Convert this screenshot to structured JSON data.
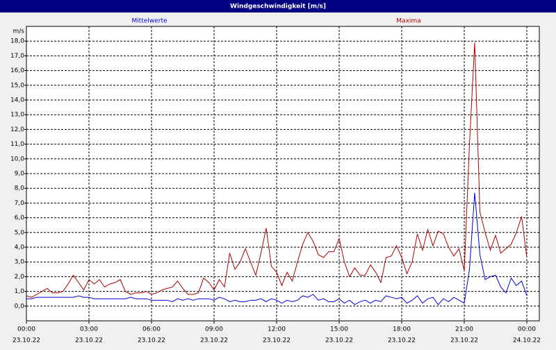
{
  "chart_data": {
    "type": "line",
    "title": "Windgeschwindigkeit [m/s]",
    "ylabel": "m/s",
    "x": [
      0,
      0.25,
      0.5,
      0.75,
      1,
      1.25,
      1.5,
      1.75,
      2,
      2.25,
      2.5,
      2.75,
      3,
      3.25,
      3.5,
      3.75,
      4,
      4.25,
      4.5,
      4.75,
      5,
      5.25,
      5.5,
      5.75,
      6,
      6.25,
      6.5,
      6.75,
      7,
      7.25,
      7.5,
      7.75,
      8,
      8.25,
      8.5,
      8.75,
      9,
      9.25,
      9.5,
      9.75,
      10,
      10.25,
      10.5,
      10.75,
      11,
      11.25,
      11.5,
      11.75,
      12,
      12.25,
      12.5,
      12.75,
      13,
      13.25,
      13.5,
      13.75,
      14,
      14.25,
      14.5,
      14.75,
      15,
      15.25,
      15.5,
      15.75,
      16,
      16.25,
      16.5,
      16.75,
      17,
      17.25,
      17.5,
      17.75,
      18,
      18.25,
      18.5,
      18.75,
      19,
      19.25,
      19.5,
      19.75,
      20,
      20.25,
      20.5,
      20.75,
      21,
      21.25,
      21.5,
      21.75,
      22,
      22.25,
      22.5,
      22.75,
      23,
      23.25,
      23.5,
      23.75,
      24
    ],
    "series": [
      {
        "name": "Mittelwerte",
        "color": "#0000dd",
        "values": [
          0.5,
          0.5,
          0.6,
          0.6,
          0.6,
          0.6,
          0.6,
          0.6,
          0.6,
          0.6,
          0.7,
          0.6,
          0.6,
          0.5,
          0.5,
          0.5,
          0.5,
          0.5,
          0.5,
          0.5,
          0.6,
          0.5,
          0.5,
          0.5,
          0.4,
          0.4,
          0.4,
          0.4,
          0.3,
          0.5,
          0.4,
          0.5,
          0.4,
          0.5,
          0.5,
          0.5,
          0.4,
          0.6,
          0.5,
          0.3,
          0.4,
          0.3,
          0.3,
          0.4,
          0.4,
          0.5,
          0.3,
          0.5,
          0.4,
          0.2,
          0.4,
          0.3,
          0.4,
          0.7,
          0.6,
          0.8,
          0.4,
          0.5,
          0.3,
          0.3,
          0.5,
          0.2,
          0.4,
          0.1,
          0.3,
          0.4,
          0.2,
          0.4,
          0.3,
          0.7,
          0.6,
          0.5,
          0.6,
          0.2,
          0.4,
          0.7,
          0.2,
          0.5,
          0.6,
          0.1,
          0.5,
          0.3,
          0.6,
          0.4,
          0.2,
          2.5,
          7.7,
          3.5,
          1.8,
          2.0,
          2.1,
          1.3,
          0.9,
          1.9,
          1.4,
          1.7,
          0.7
        ]
      },
      {
        "name": "Maxima",
        "color": "#aa0000",
        "values": [
          0.7,
          0.6,
          0.8,
          1.0,
          1.2,
          0.9,
          0.9,
          1.0,
          1.5,
          2.1,
          1.6,
          1.1,
          1.8,
          1.5,
          1.8,
          1.3,
          1.5,
          1.6,
          1.8,
          1.0,
          0.8,
          0.9,
          0.9,
          1.0,
          0.8,
          0.9,
          1.1,
          1.2,
          1.3,
          1.7,
          1.2,
          0.8,
          0.8,
          0.9,
          1.9,
          1.6,
          1.1,
          1.8,
          1.3,
          3.6,
          2.5,
          3.0,
          3.9,
          3.0,
          2.1,
          3.6,
          5.3,
          2.7,
          2.3,
          1.4,
          2.3,
          1.7,
          3.0,
          4.2,
          5.0,
          4.4,
          3.5,
          3.3,
          3.7,
          3.7,
          4.6,
          3.0,
          2.0,
          2.6,
          2.1,
          2.1,
          2.8,
          2.3,
          1.6,
          3.3,
          3.4,
          4.1,
          3.3,
          2.2,
          3.0,
          4.9,
          3.8,
          5.2,
          4.1,
          5.1,
          4.9,
          4.0,
          3.4,
          3.9,
          2.4,
          11.0,
          17.9,
          6.4,
          5.0,
          3.8,
          4.8,
          3.6,
          3.9,
          4.2,
          5.0,
          6.1,
          3.3
        ]
      }
    ],
    "xlim": [
      0,
      24.6
    ],
    "xticks": [
      {
        "value": 0,
        "label": "00:00"
      },
      {
        "value": 3,
        "label": "03:00"
      },
      {
        "value": 6,
        "label": "06:00"
      },
      {
        "value": 9,
        "label": "09:00"
      },
      {
        "value": 12,
        "label": "12:00"
      },
      {
        "value": 15,
        "label": "15:00"
      },
      {
        "value": 18,
        "label": "18:00"
      },
      {
        "value": 21,
        "label": "21:00"
      },
      {
        "value": 24,
        "label": "00:00"
      }
    ],
    "xtick_dates": [
      "23.10.22",
      "23.10.22",
      "23.10.22",
      "23.10.22",
      "23.10.22",
      "23.10.22",
      "23.10.22",
      "23.10.22",
      "24.10.22"
    ],
    "ylim": [
      -1,
      19
    ],
    "yticks": [
      {
        "value": 0,
        "label": "0,0"
      },
      {
        "value": 1,
        "label": "1,0"
      },
      {
        "value": 2,
        "label": "2,0"
      },
      {
        "value": 3,
        "label": "3,0"
      },
      {
        "value": 4,
        "label": "4,0"
      },
      {
        "value": 5,
        "label": "5,0"
      },
      {
        "value": 6,
        "label": "6,0"
      },
      {
        "value": 7,
        "label": "7,0"
      },
      {
        "value": 8,
        "label": "8,0"
      },
      {
        "value": 9,
        "label": "9,0"
      },
      {
        "value": 10,
        "label": "10,0"
      },
      {
        "value": 11,
        "label": "11,0"
      },
      {
        "value": 12,
        "label": "12,0"
      },
      {
        "value": 13,
        "label": "13,0"
      },
      {
        "value": 14,
        "label": "14,0"
      },
      {
        "value": 15,
        "label": "15,0"
      },
      {
        "value": 16,
        "label": "16,0"
      },
      {
        "value": 17,
        "label": "17,0"
      },
      {
        "value": 18,
        "label": "18,0"
      }
    ],
    "grid": true
  }
}
